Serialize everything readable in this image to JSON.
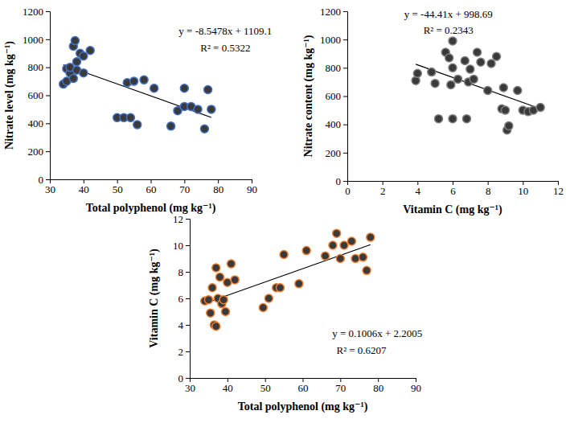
{
  "chart_data": [
    {
      "type": "scatter",
      "x_label": "Total polyphenol (mg kg⁻¹)",
      "y_label": "Nitrate level (mg kg⁻¹)",
      "x": [
        34,
        35,
        35,
        36,
        36,
        37,
        37,
        37.5,
        38,
        38,
        39,
        40,
        40,
        42,
        50,
        52,
        53,
        54,
        55,
        56,
        58,
        61,
        66,
        68,
        70,
        70,
        72,
        74,
        76,
        77,
        78
      ],
      "y": [
        680,
        700,
        790,
        760,
        800,
        720,
        950,
        990,
        840,
        780,
        900,
        760,
        880,
        920,
        440,
        440,
        690,
        440,
        700,
        390,
        710,
        650,
        380,
        490,
        650,
        520,
        520,
        500,
        360,
        640,
        500
      ],
      "color": "#4472c4",
      "marker": "circle",
      "xlim": [
        30,
        90
      ],
      "ylim": [
        0,
        1200
      ],
      "xticks": [
        30,
        40,
        50,
        60,
        70,
        80,
        90
      ],
      "yticks": [
        0,
        200,
        400,
        600,
        800,
        1000,
        1200
      ],
      "grid": false,
      "trendline": {
        "slope": -8.5478,
        "intercept": 1109.1
      },
      "annotations": [
        "y = -8.5478x + 1109.1",
        "R² = 0.5322"
      ]
    },
    {
      "type": "scatter",
      "x_label": "Vitamin C (mg kg⁻¹)",
      "y_label": "Nitrate content (mg kg⁻¹)",
      "x": [
        3.9,
        4,
        4.8,
        5,
        5.2,
        5.6,
        5.8,
        5.9,
        6,
        6,
        6,
        6.3,
        6.7,
        6.8,
        6.9,
        7,
        7.2,
        7.4,
        7.6,
        8,
        8.2,
        8.5,
        8.8,
        8.9,
        9,
        9.1,
        9.2,
        9.7,
        10,
        10.3,
        10.6,
        11
      ],
      "y": [
        710,
        760,
        770,
        690,
        440,
        910,
        870,
        680,
        990,
        800,
        440,
        720,
        850,
        440,
        700,
        790,
        720,
        910,
        840,
        640,
        830,
        880,
        510,
        660,
        500,
        360,
        390,
        640,
        500,
        490,
        500,
        520
      ],
      "color": "#7f7f7f",
      "marker": "circle",
      "xlim": [
        0,
        12
      ],
      "ylim": [
        0,
        1200
      ],
      "xticks": [
        0,
        2,
        4,
        6,
        8,
        10,
        12
      ],
      "yticks": [
        0,
        200,
        400,
        600,
        800,
        1000,
        1200
      ],
      "grid": false,
      "trendline": {
        "slope": -44.41,
        "intercept": 998.69
      },
      "annotations": [
        "y = -44.41x + 998.69",
        "R² = 0.2343"
      ]
    },
    {
      "type": "scatter",
      "x_label": "Total polyphenol (mg kg⁻¹)",
      "y_label": "Vitamin C (mg kg⁻¹)",
      "x": [
        34,
        35,
        35.5,
        36,
        36.5,
        37,
        37,
        37.5,
        38,
        38.5,
        39,
        39.5,
        40,
        41,
        42,
        49.5,
        51,
        53,
        54,
        55,
        59,
        61,
        66,
        68,
        69,
        70,
        71,
        73,
        74,
        76,
        77,
        78
      ],
      "y": [
        5.8,
        5.9,
        4.9,
        6.8,
        4.0,
        3.9,
        8.3,
        6.0,
        7.6,
        5.6,
        5.9,
        5.0,
        7.2,
        8.6,
        7.4,
        5.3,
        6.0,
        6.8,
        6.8,
        9.3,
        7.1,
        9.6,
        9.2,
        10.0,
        10.9,
        9.0,
        10.0,
        10.3,
        9.0,
        9.1,
        8.1,
        10.6
      ],
      "color": "#ed7d31",
      "marker": "circle",
      "xlim": [
        30,
        90
      ],
      "ylim": [
        0,
        12
      ],
      "xticks": [
        30,
        40,
        50,
        60,
        70,
        80,
        90
      ],
      "yticks": [
        0,
        2,
        4,
        6,
        8,
        10,
        12
      ],
      "grid": false,
      "trendline": {
        "slope": 0.1006,
        "intercept": 2.2005
      },
      "annotations": [
        "y = 0.1006x + 2.2005",
        "R² = 0.6207"
      ]
    }
  ]
}
